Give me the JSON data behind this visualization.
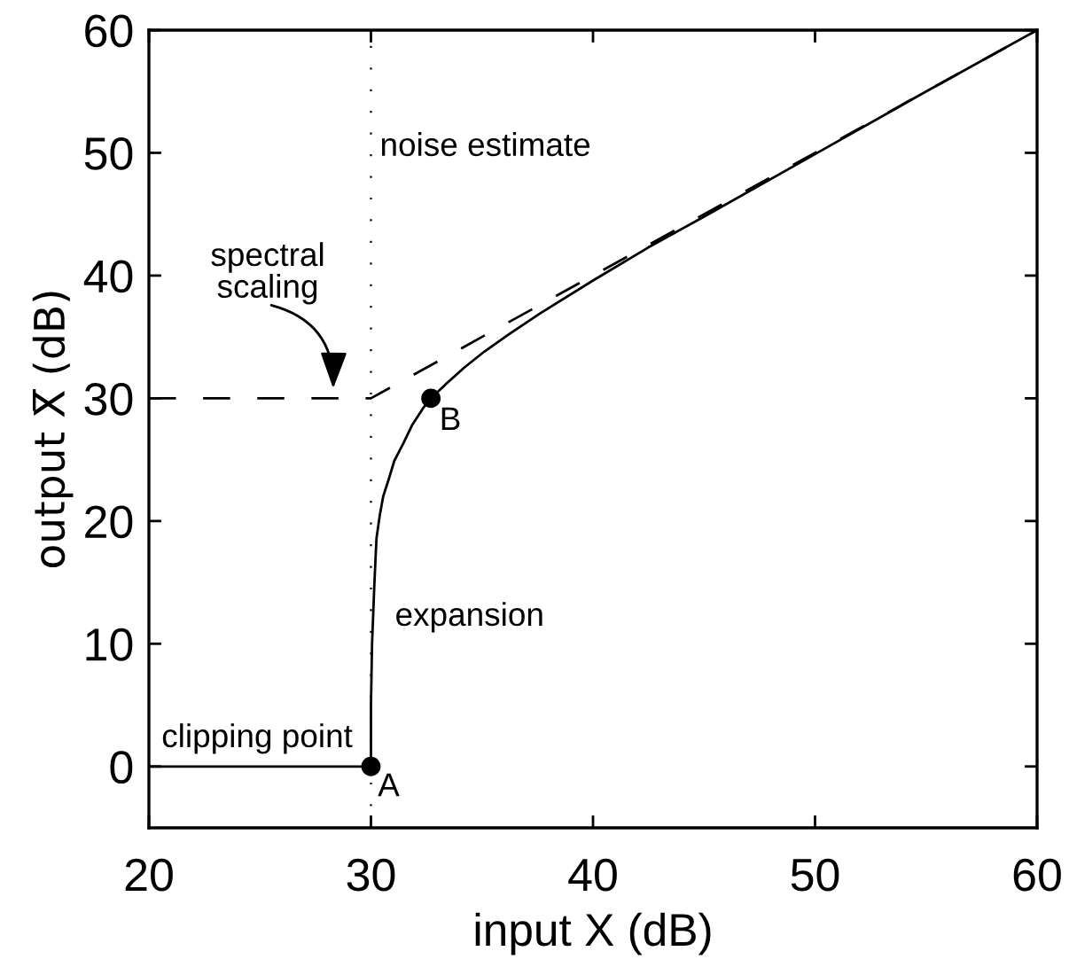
{
  "chart_data": {
    "type": "line",
    "xlabel": "input X (dB)",
    "ylabel": "output X̅ (dB)",
    "xlim": [
      20,
      60
    ],
    "ylim": [
      -5,
      60
    ],
    "xticks": [
      20,
      30,
      40,
      50,
      60
    ],
    "yticks": [
      0,
      10,
      20,
      30,
      40,
      50,
      60
    ],
    "series": [
      {
        "color": "#000000",
        "line_style": "solid",
        "marker": "none",
        "x": [
          20,
          30,
          30,
          30.05,
          30.15,
          30.2,
          30.25,
          30.4,
          30.55,
          30.8,
          31.05,
          31.45,
          31.85,
          32.35,
          32.7,
          33.4,
          34.2,
          35.1,
          36.2,
          37.6,
          40,
          42.5,
          45,
          50,
          55,
          60
        ],
        "values": [
          0,
          0,
          5,
          10,
          14.7,
          16.7,
          18.6,
          20.5,
          22,
          23.4,
          24.9,
          26.3,
          27.8,
          29.2,
          30,
          31.2,
          32.5,
          33.8,
          35.2,
          36.9,
          39.6,
          42.3,
          44.8,
          49.9,
          55,
          60
        ]
      },
      {
        "color": "#000000",
        "line_style": "dashed",
        "marker": "none",
        "x": [
          20,
          30,
          60
        ],
        "values": [
          30,
          30,
          60
        ]
      },
      {
        "type": "scatter",
        "color": "#000000",
        "marker": "circle",
        "x": [
          30,
          32.7
        ],
        "values": [
          0,
          30
        ]
      }
    ],
    "ref_lines": [
      {
        "axis": "x",
        "value": 30,
        "label": "noise estimate",
        "color": "#000000",
        "line_style": "dotted"
      }
    ],
    "annotations": [
      {
        "text": "spectral\nscaling",
        "x": 28.3,
        "y": 30.8
      },
      "expansion",
      "clipping point",
      {
        "text": "A",
        "x": 30,
        "y": 0
      },
      {
        "text": "B",
        "x": 32.7,
        "y": 30
      }
    ]
  }
}
